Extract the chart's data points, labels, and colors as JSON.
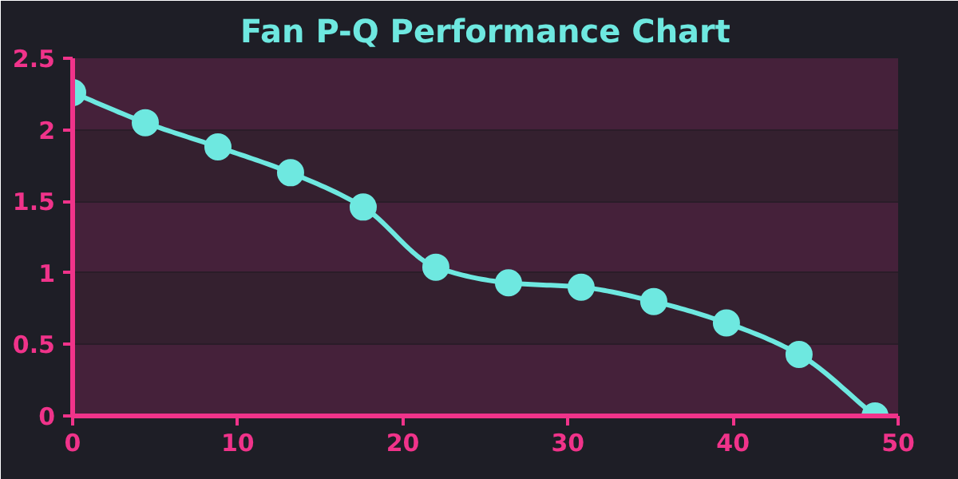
{
  "chart_data": {
    "type": "line",
    "title": "Fan P-Q Performance Chart",
    "x": [
      0,
      4.4,
      8.8,
      13.2,
      17.6,
      22,
      26.4,
      30.8,
      35.2,
      39.6,
      44,
      48.6
    ],
    "series": [
      {
        "color": "#6ee8e0",
        "values": [
          2.26,
          2.05,
          1.88,
          1.7,
          1.46,
          1.04,
          0.93,
          0.9,
          0.8,
          0.65,
          0.43,
          0
        ]
      }
    ],
    "xlim": [
      0,
      50
    ],
    "xticks": [
      0,
      10,
      20,
      30,
      40,
      50
    ],
    "ylim": [
      0,
      2.5
    ],
    "yticks": [
      0,
      0.5,
      1,
      1.5,
      2,
      2.5
    ],
    "grid": "y",
    "marker": "circle",
    "line_style": "solid"
  }
}
